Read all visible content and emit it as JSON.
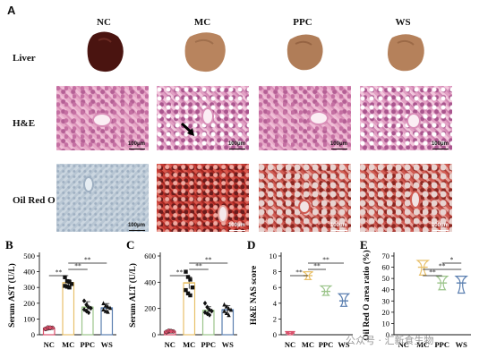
{
  "panel_a": {
    "letter": "A",
    "columns": [
      "NC",
      "MC",
      "PPC",
      "WS"
    ],
    "rows": [
      "Liver",
      "H&E",
      "Oil Red O"
    ],
    "scale_label": "100μm",
    "colors": {
      "nc_liver": "#4a1410",
      "treated_liver": "#b8845e"
    }
  },
  "watermark": "公众号 · 汇新食生物",
  "chart_data": [
    {
      "id": "B",
      "letter": "B",
      "type": "bar",
      "ylabel": "Serum AST (U/L)",
      "categories": [
        "NC",
        "MC",
        "PPC",
        "WS"
      ],
      "values": [
        42,
        330,
        175,
        170
      ],
      "errors": [
        6,
        20,
        35,
        28
      ],
      "points": [
        [
          36,
          40,
          42,
          44,
          38,
          46,
          45
        ],
        [
          365,
          340,
          335,
          322,
          310,
          305,
          300
        ],
        [
          215,
          190,
          175,
          168,
          160,
          150,
          140
        ],
        [
          200,
          185,
          178,
          170,
          160,
          150,
          145
        ]
      ],
      "ylim": [
        0,
        500
      ],
      "yticks": [
        0,
        100,
        200,
        300,
        400,
        500
      ],
      "colors": [
        "#d94f6a",
        "#e8c06a",
        "#9bc48a",
        "#5b7fb0"
      ],
      "markers": [
        "circle",
        "square",
        "diamond",
        "triangle"
      ],
      "sig": [
        {
          "from": 0,
          "to": 1,
          "label": "**"
        },
        {
          "from": 1,
          "to": 2,
          "label": "**"
        },
        {
          "from": 1,
          "to": 3,
          "label": "**"
        }
      ]
    },
    {
      "id": "C",
      "letter": "C",
      "type": "bar",
      "ylabel": "Serum ALT (U/L)",
      "categories": [
        "NC",
        "MC",
        "PPC",
        "WS"
      ],
      "values": [
        25,
        395,
        185,
        190
      ],
      "errors": [
        5,
        45,
        28,
        32
      ],
      "points": [
        [
          20,
          24,
          28,
          25,
          22,
          30,
          26
        ],
        [
          480,
          440,
          420,
          360,
          340,
          315,
          300
        ],
        [
          240,
          210,
          190,
          180,
          170,
          160,
          150
        ],
        [
          230,
          215,
          200,
          190,
          180,
          165,
          150
        ]
      ],
      "ylim": [
        0,
        600
      ],
      "yticks": [
        0,
        200,
        400,
        600
      ],
      "colors": [
        "#d94f6a",
        "#e8c06a",
        "#9bc48a",
        "#5b7fb0"
      ],
      "markers": [
        "circle",
        "square",
        "diamond",
        "triangle"
      ],
      "sig": [
        {
          "from": 0,
          "to": 1,
          "label": "**"
        },
        {
          "from": 1,
          "to": 2,
          "label": "**"
        },
        {
          "from": 1,
          "to": 3,
          "label": "**"
        }
      ]
    },
    {
      "id": "D",
      "letter": "D",
      "type": "violin",
      "ylabel": "H&E NAS score",
      "categories": [
        "NC",
        "MC",
        "PPC",
        "WS"
      ],
      "medians": [
        0.2,
        7.5,
        5.5,
        4.3
      ],
      "ranges": [
        [
          0,
          0.4
        ],
        [
          7,
          8
        ],
        [
          5,
          6.2
        ],
        [
          3.6,
          5.2
        ]
      ],
      "ylim": [
        0,
        10
      ],
      "yticks": [
        0,
        2,
        4,
        6,
        8,
        10
      ],
      "colors": [
        "#d94f6a",
        "#e8c06a",
        "#9bc48a",
        "#5b7fb0"
      ],
      "sig": [
        {
          "from": 0,
          "to": 1,
          "label": "**"
        },
        {
          "from": 1,
          "to": 2,
          "label": "**"
        },
        {
          "from": 1,
          "to": 3,
          "label": "**"
        }
      ]
    },
    {
      "id": "E",
      "letter": "E",
      "type": "violin",
      "ylabel": "Oil Red O area ratio (%)",
      "categories": [
        "NC",
        "MC",
        "PPC",
        "WS"
      ],
      "medians": [
        null,
        60,
        46,
        46
      ],
      "ranges": [
        null,
        [
          53,
          66
        ],
        [
          40,
          52
        ],
        [
          37,
          52
        ]
      ],
      "ylim": [
        0,
        70
      ],
      "yticks": [
        0,
        10,
        20,
        30,
        40,
        50,
        60,
        70
      ],
      "colors": [
        "#d94f6a",
        "#e8c06a",
        "#9bc48a",
        "#5b7fb0"
      ],
      "sig": [
        {
          "from": 1,
          "to": 2,
          "label": "**"
        },
        {
          "from": 1,
          "to": 3,
          "label": "**"
        },
        {
          "from": 2,
          "to": 3,
          "label": "*"
        }
      ]
    }
  ]
}
